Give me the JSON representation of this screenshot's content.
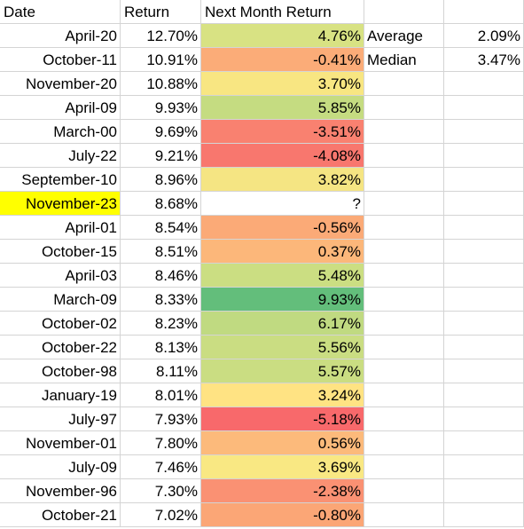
{
  "headers": {
    "date": "Date",
    "return": "Return",
    "next_month": "Next Month Return"
  },
  "stats": [
    {
      "label": "Average",
      "value": "2.09%"
    },
    {
      "label": "Median",
      "value": "3.47%"
    }
  ],
  "colors": {
    "highlight": "#ffff00",
    "grid": "#d4d4d4",
    "scale_red": "#f8696b",
    "scale_yellow": "#ffeb84",
    "scale_green": "#63be7b"
  },
  "rows": [
    {
      "date": "April-20",
      "ret": "12.70%",
      "next": "4.76%",
      "color": "#d8e283"
    },
    {
      "date": "October-11",
      "ret": "10.91%",
      "next": "-0.41%",
      "color": "#fbac78"
    },
    {
      "date": "November-20",
      "ret": "10.88%",
      "next": "3.70%",
      "color": "#f8e682"
    },
    {
      "date": "April-09",
      "ret": "9.93%",
      "next": "5.85%",
      "color": "#c5dc81"
    },
    {
      "date": "March-00",
      "ret": "9.69%",
      "next": "-3.51%",
      "color": "#f98170"
    },
    {
      "date": "July-22",
      "ret": "9.21%",
      "next": "-4.08%",
      "color": "#f8776e"
    },
    {
      "date": "September-10",
      "ret": "8.96%",
      "next": "3.82%",
      "color": "#f5e583"
    },
    {
      "date": "November-23",
      "ret": "8.68%",
      "next": "?",
      "color": "#ffffff",
      "highlight": true
    },
    {
      "date": "April-01",
      "ret": "8.54%",
      "next": "-0.56%",
      "color": "#fbaa77"
    },
    {
      "date": "October-15",
      "ret": "8.51%",
      "next": "0.37%",
      "color": "#fcb77a"
    },
    {
      "date": "April-03",
      "ret": "8.46%",
      "next": "5.48%",
      "color": "#cbde82"
    },
    {
      "date": "March-09",
      "ret": "8.33%",
      "next": "9.93%",
      "color": "#63be7b"
    },
    {
      "date": "October-02",
      "ret": "8.23%",
      "next": "6.17%",
      "color": "#c0da81"
    },
    {
      "date": "October-22",
      "ret": "8.13%",
      "next": "5.56%",
      "color": "#cadd82"
    },
    {
      "date": "October-98",
      "ret": "8.11%",
      "next": "5.57%",
      "color": "#cadd82"
    },
    {
      "date": "January-19",
      "ret": "8.01%",
      "next": "3.24%",
      "color": "#ffe383"
    },
    {
      "date": "July-97",
      "ret": "7.93%",
      "next": "-5.18%",
      "color": "#f8696b"
    },
    {
      "date": "November-01",
      "ret": "7.80%",
      "next": "0.56%",
      "color": "#fcba7b"
    },
    {
      "date": "July-09",
      "ret": "7.46%",
      "next": "3.69%",
      "color": "#f9e883"
    },
    {
      "date": "November-96",
      "ret": "7.30%",
      "next": "-2.38%",
      "color": "#fa9173"
    },
    {
      "date": "October-21",
      "ret": "7.02%",
      "next": "-0.80%",
      "color": "#fba676"
    }
  ]
}
